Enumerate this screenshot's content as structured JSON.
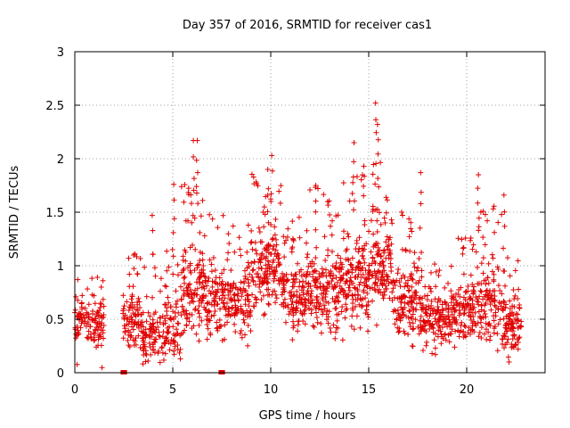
{
  "chart_data": {
    "type": "scatter",
    "title": "Day 357 of 2016, SRMTID for receiver cas1",
    "xlabel": "GPS time / hours",
    "ylabel": "SRMTID / TECUs",
    "xlim": [
      0,
      24
    ],
    "ylim": [
      0,
      3
    ],
    "grid": true,
    "marker": "plus",
    "color": "#e00000",
    "x_ticks": [
      "0",
      "5",
      "10",
      "15",
      "20"
    ],
    "y_ticks": [
      "0",
      "0.5",
      "1",
      "1.5",
      "2",
      "2.5",
      "3"
    ],
    "x_tick_values": [
      0,
      5,
      10,
      15,
      20
    ],
    "y_tick_values": [
      0,
      0.5,
      1,
      1.5,
      2,
      2.5,
      3
    ],
    "zero_markers": [
      {
        "x": 2.45,
        "y": 0
      },
      {
        "x": 2.55,
        "y": 0
      },
      {
        "x": 7.45,
        "y": 0
      },
      {
        "x": 7.55,
        "y": 0
      }
    ],
    "peaks": [
      {
        "x": 0.15,
        "y": 0.87
      },
      {
        "x": 1.35,
        "y": 0.8
      },
      {
        "x": 2.75,
        "y": 1.07
      },
      {
        "x": 3.0,
        "y": 1.1
      },
      {
        "x": 3.95,
        "y": 1.47
      },
      {
        "x": 5.05,
        "y": 1.76
      },
      {
        "x": 6.05,
        "y": 2.17
      },
      {
        "x": 6.25,
        "y": 2.17
      },
      {
        "x": 9.85,
        "y": 1.9
      },
      {
        "x": 10.05,
        "y": 2.03
      },
      {
        "x": 12.3,
        "y": 1.75
      },
      {
        "x": 14.25,
        "y": 2.15
      },
      {
        "x": 14.75,
        "y": 1.93
      },
      {
        "x": 15.35,
        "y": 2.52
      },
      {
        "x": 15.45,
        "y": 2.32
      },
      {
        "x": 17.65,
        "y": 1.87
      },
      {
        "x": 20.6,
        "y": 1.85
      },
      {
        "x": 21.9,
        "y": 1.66
      }
    ],
    "segments": [
      {
        "start": 0.0,
        "end": 1.5,
        "mean": 0.45,
        "spread": 0.2,
        "density": 110
      },
      {
        "start": 2.45,
        "end": 3.4,
        "mean": 0.5,
        "spread": 0.25,
        "density": 80
      },
      {
        "start": 3.4,
        "end": 4.6,
        "mean": 0.35,
        "spread": 0.25,
        "density": 100
      },
      {
        "start": 4.6,
        "end": 5.4,
        "mean": 0.4,
        "spread": 0.3,
        "density": 70
      },
      {
        "start": 5.4,
        "end": 6.6,
        "mean": 0.75,
        "spread": 0.45,
        "density": 130
      },
      {
        "start": 6.6,
        "end": 7.6,
        "mean": 0.7,
        "spread": 0.35,
        "density": 90
      },
      {
        "start": 7.6,
        "end": 9.0,
        "mean": 0.65,
        "spread": 0.3,
        "density": 130
      },
      {
        "start": 9.0,
        "end": 10.6,
        "mean": 0.95,
        "spread": 0.35,
        "density": 160
      },
      {
        "start": 10.6,
        "end": 12.0,
        "mean": 0.7,
        "spread": 0.3,
        "density": 140
      },
      {
        "start": 12.0,
        "end": 13.6,
        "mean": 0.75,
        "spread": 0.38,
        "density": 160
      },
      {
        "start": 13.6,
        "end": 15.0,
        "mean": 0.85,
        "spread": 0.4,
        "density": 150
      },
      {
        "start": 15.0,
        "end": 16.2,
        "mean": 1.0,
        "spread": 0.38,
        "density": 130
      },
      {
        "start": 16.2,
        "end": 17.6,
        "mean": 0.7,
        "spread": 0.35,
        "density": 130
      },
      {
        "start": 17.6,
        "end": 19.2,
        "mean": 0.5,
        "spread": 0.25,
        "density": 150
      },
      {
        "start": 19.2,
        "end": 20.6,
        "mean": 0.6,
        "spread": 0.3,
        "density": 130
      },
      {
        "start": 20.6,
        "end": 21.8,
        "mean": 0.65,
        "spread": 0.35,
        "density": 110
      },
      {
        "start": 21.8,
        "end": 22.8,
        "mean": 0.45,
        "spread": 0.25,
        "density": 100
      }
    ]
  }
}
